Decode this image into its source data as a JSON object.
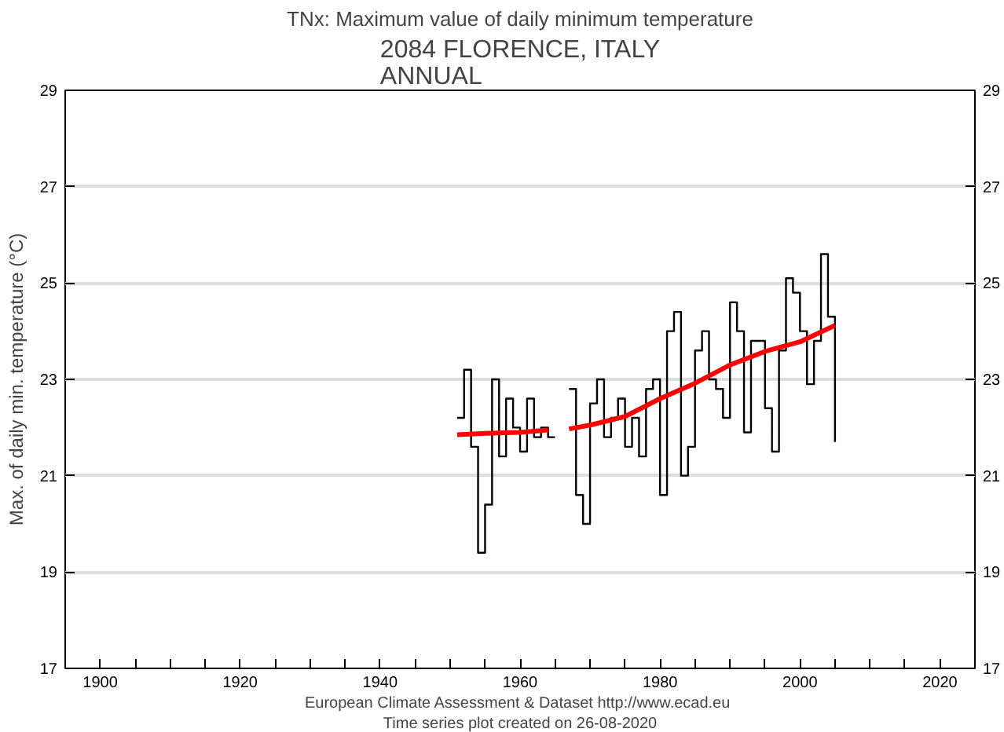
{
  "chart_data": {
    "type": "step",
    "title": "TNx: Maximum value of daily minimum temperature",
    "subtitle": "2084 FLORENCE, ITALY\nANNUAL",
    "ylabel": "Max. of daily min. temperature (°C)",
    "annotations": [
      "European Climate Assessment & Dataset  http://www.ecad.eu",
      "Time series plot created on 26-08-2020"
    ],
    "xlim": [
      1895,
      2025
    ],
    "xticks": [
      1900,
      {
        "value": 1905,
        "label": null
      },
      {
        "value": 1910,
        "label": null
      },
      {
        "value": 1915,
        "label": null
      },
      1920,
      {
        "value": 1925,
        "label": null
      },
      {
        "value": 1930,
        "label": null
      },
      {
        "value": 1935,
        "label": null
      },
      1940,
      {
        "value": 1945,
        "label": null
      },
      {
        "value": 1950,
        "label": null
      },
      {
        "value": 1955,
        "label": null
      },
      1960,
      {
        "value": 1965,
        "label": null
      },
      {
        "value": 1970,
        "label": null
      },
      {
        "value": 1975,
        "label": null
      },
      1980,
      {
        "value": 1985,
        "label": null
      },
      {
        "value": 1990,
        "label": null
      },
      {
        "value": 1995,
        "label": null
      },
      2000,
      {
        "value": 2005,
        "label": null
      },
      {
        "value": 2010,
        "label": null
      },
      {
        "value": 2015,
        "label": null
      },
      2020
    ],
    "ylim": [
      17,
      29
    ],
    "yticks": [
      17,
      19,
      21,
      23,
      25,
      27,
      29
    ],
    "y2lim": [
      17,
      29
    ],
    "y2ticks": [
      17,
      19,
      21,
      23,
      25,
      27,
      29
    ],
    "grid": "y",
    "series": [
      {
        "color": "#000000",
        "x": [
          1951,
          1952,
          1953,
          1954,
          1955,
          1956,
          1957,
          1958,
          1959,
          1960,
          1961,
          1962,
          1963,
          1964,
          1965,
          1966,
          1967,
          1968,
          1969,
          1970,
          1971,
          1972,
          1973,
          1974,
          1975,
          1976,
          1977,
          1978,
          1979,
          1980,
          1981,
          1982,
          1983,
          1984,
          1985,
          1986,
          1987,
          1988,
          1989,
          1990,
          1991,
          1992,
          1993,
          1994,
          1995,
          1996,
          1997,
          1998,
          1999,
          2000,
          2001,
          2002,
          2003,
          2004,
          2005
        ],
        "values": [
          22.2,
          23.2,
          21.6,
          19.4,
          20.4,
          23.0,
          21.4,
          22.6,
          22.0,
          21.5,
          22.6,
          21.8,
          22.0,
          21.8,
          null,
          null,
          22.8,
          20.6,
          20.0,
          22.5,
          23.0,
          21.8,
          22.2,
          22.6,
          21.6,
          22.2,
          21.4,
          22.8,
          23.0,
          20.6,
          24.0,
          24.4,
          21.0,
          21.6,
          23.6,
          24.0,
          23.0,
          22.8,
          22.2,
          24.6,
          24.0,
          21.9,
          23.8,
          23.8,
          22.4,
          21.5,
          23.6,
          25.1,
          24.8,
          24.0,
          22.9,
          23.8,
          25.6,
          24.3,
          21.7
        ]
      },
      {
        "type": "line",
        "color": "#ff0000",
        "x": [
          1951,
          1955,
          1960,
          1964,
          1965,
          1967,
          1970,
          1975,
          1980,
          1985,
          1990,
          1995,
          2000,
          2005
        ],
        "values": [
          21.85,
          21.88,
          21.9,
          21.95,
          null,
          21.97,
          22.05,
          22.23,
          22.6,
          22.92,
          23.3,
          23.58,
          23.78,
          24.12
        ]
      }
    ]
  }
}
